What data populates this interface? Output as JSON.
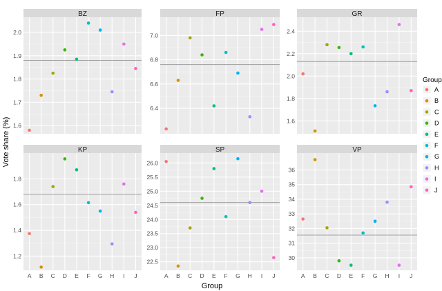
{
  "chart_data": {
    "type": "scatter",
    "xlabel": "Group",
    "ylabel": "Vote share (%)",
    "categories": [
      "A",
      "B",
      "C",
      "D",
      "E",
      "F",
      "G",
      "H",
      "I",
      "J"
    ],
    "legend": {
      "title": "Group",
      "placement": "right"
    },
    "grid": true,
    "colors": [
      "#F8766D",
      "#D89000",
      "#A3A500",
      "#39B600",
      "#00BF7D",
      "#00BFC4",
      "#00B0F6",
      "#9590FF",
      "#E76BF3",
      "#FF62BC"
    ],
    "panels": [
      {
        "title": "BZ",
        "values": [
          1.58,
          1.73,
          1.825,
          1.925,
          1.885,
          2.04,
          2.01,
          1.745,
          1.95,
          1.845
        ],
        "mean": 1.88,
        "ylim": [
          1.565,
          2.065
        ],
        "yticks": [
          1.6,
          1.7,
          1.8,
          1.9,
          2.0
        ]
      },
      {
        "title": "FP",
        "values": [
          6.23,
          6.63,
          6.98,
          6.84,
          6.42,
          6.86,
          6.69,
          6.33,
          7.05,
          7.09
        ],
        "mean": 6.76,
        "ylim": [
          6.19,
          7.15
        ],
        "yticks": [
          6.4,
          6.6,
          6.8,
          7.0
        ]
      },
      {
        "title": "GR",
        "values": [
          2.02,
          1.51,
          2.28,
          2.255,
          2.2,
          2.26,
          1.735,
          1.86,
          2.46,
          1.87
        ],
        "mean": 2.13,
        "ylim": [
          1.485,
          2.525
        ],
        "yticks": [
          1.6,
          1.8,
          2.0,
          2.2,
          2.4
        ]
      },
      {
        "title": "KP",
        "values": [
          1.375,
          1.115,
          1.74,
          1.955,
          1.87,
          1.615,
          1.55,
          1.295,
          1.76,
          1.54
        ],
        "mean": 1.68,
        "ylim": [
          1.09,
          2.0
        ],
        "yticks": [
          1.2,
          1.4,
          1.6,
          1.8
        ]
      },
      {
        "title": "SP",
        "values": [
          26.05,
          22.35,
          23.7,
          24.75,
          25.8,
          24.1,
          26.15,
          24.6,
          25.0,
          22.65
        ],
        "mean": 24.6,
        "ylim": [
          22.2,
          26.35
        ],
        "yticks": [
          22.5,
          23.0,
          23.5,
          24.0,
          24.5,
          25.0,
          25.5,
          26.0
        ]
      },
      {
        "title": "VP",
        "values": [
          32.65,
          36.7,
          32.05,
          29.8,
          29.5,
          31.7,
          32.5,
          33.8,
          29.5,
          34.85
        ],
        "mean": 31.55,
        "ylim": [
          29.15,
          37.15
        ],
        "yticks": [
          30,
          31,
          32,
          33,
          34,
          35,
          36
        ]
      }
    ]
  }
}
